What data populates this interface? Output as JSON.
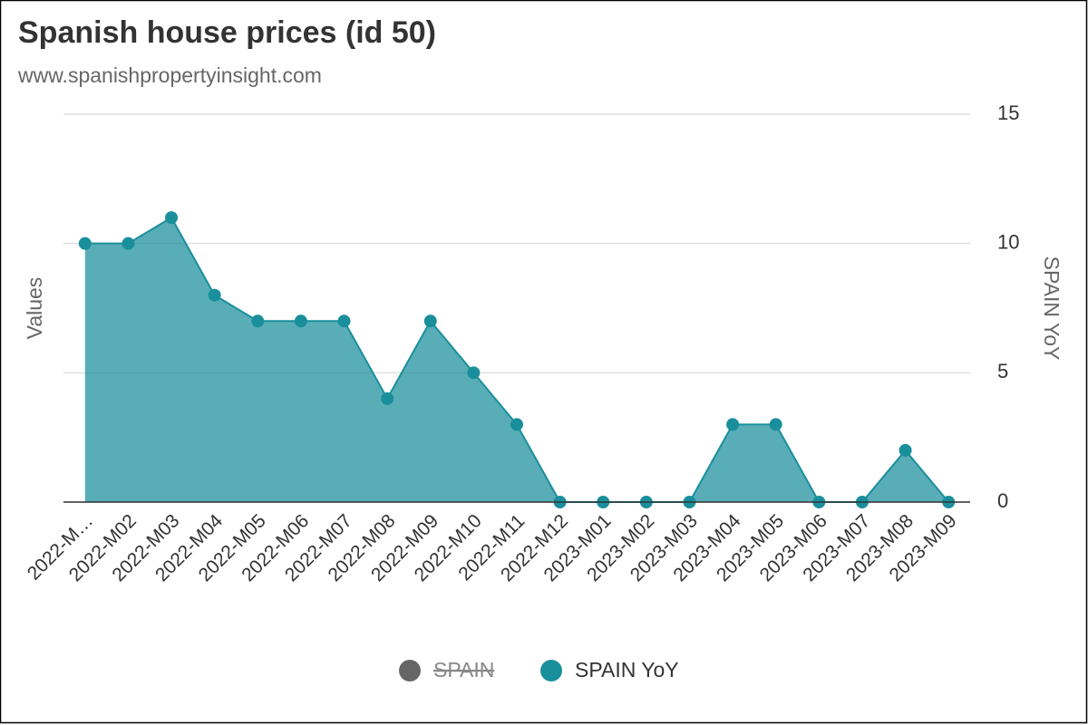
{
  "chart_data": {
    "type": "area",
    "title": "Spanish house prices (id 50)",
    "subtitle": "www.spanishpropertyinsight.com",
    "y_label": "Values",
    "y2_label": "SPAIN YoY",
    "categories": [
      "2022-M…",
      "2022-M02",
      "2022-M03",
      "2022-M04",
      "2022-M05",
      "2022-M06",
      "2022-M07",
      "2022-M08",
      "2022-M09",
      "2022-M10",
      "2022-M11",
      "2022-M12",
      "2023-M01",
      "2023-M02",
      "2023-M03",
      "2023-M04",
      "2023-M05",
      "2023-M06",
      "2023-M07",
      "2023-M08",
      "2023-M09"
    ],
    "series": [
      {
        "name": "SPAIN",
        "color": "#666666",
        "visible": false
      },
      {
        "name": "SPAIN YoY",
        "color": "#1a8f9c",
        "axis": "y2",
        "visible": true,
        "values": [
          10,
          10,
          11,
          8,
          7,
          7,
          7,
          4,
          7,
          5,
          3,
          0,
          0,
          0,
          0,
          3,
          3,
          0,
          0,
          2,
          0
        ]
      }
    ],
    "y2lim": [
      0,
      15
    ],
    "y2ticks": [
      0,
      5,
      10,
      15
    ],
    "grid": true,
    "legend": "bottom"
  }
}
